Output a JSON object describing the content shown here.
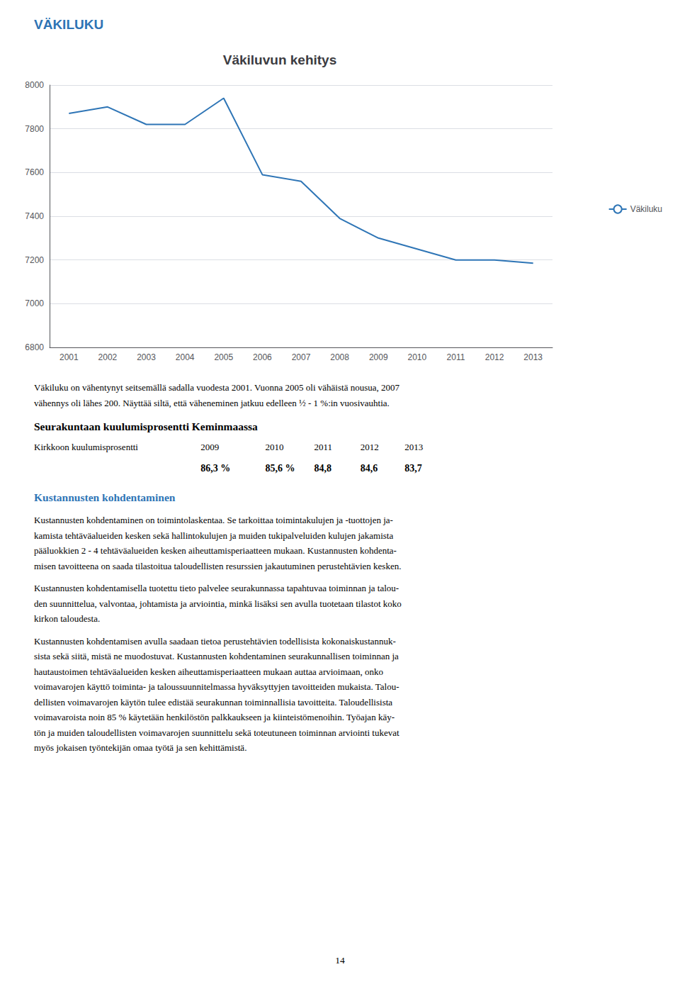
{
  "page_title": {
    "text": "VÄKILUKU",
    "color": "#2E74B5"
  },
  "chart_data": {
    "type": "line",
    "title": "Väkiluvun kehitys",
    "categories": [
      "2001",
      "2002",
      "2003",
      "2004",
      "2005",
      "2006",
      "2007",
      "2008",
      "2009",
      "2010",
      "2011",
      "2012",
      "2013"
    ],
    "series": [
      {
        "name": "Väkiluku",
        "color": "#2E75B6",
        "values": [
          7870,
          7900,
          7820,
          7820,
          7940,
          7590,
          7560,
          7390,
          7300,
          7250,
          7200,
          7200,
          7185
        ]
      }
    ],
    "ylim": [
      6800,
      8000
    ],
    "yticks": [
      6800,
      7000,
      7200,
      7400,
      7600,
      7800,
      8000
    ],
    "grid": true,
    "legend": "right"
  },
  "body": [
    {
      "paragraph": [
        "Väkiluku on vähentynyt seitsemällä sadalla vuodesta 2001. Vuonna 2005 oli vähäistä nousua, 2007",
        "vähennys oli lähes 200. Näyttää siltä, että väheneminen jatkuu edelleen ½ - 1 %:in vuosivauhtia."
      ]
    },
    {
      "heading": "Seurakuntaan kuulumisprosentti Keminmaassa"
    },
    {
      "table": {
        "label": "Kirkkoon kuulumisprosentti",
        "columns": [
          "2009",
          "2010",
          "2011",
          "2012",
          "2013"
        ],
        "values": [
          "86,3 %",
          "85,6 %",
          "84,8",
          "84,6",
          "83,7"
        ]
      }
    },
    {
      "heading": "Kustannusten kohdentaminen",
      "color": "#2E75B6"
    },
    {
      "paragraph": [
        "Kustannusten kohdentaminen on toimintolaskentaa. Se tarkoittaa toimintakulujen ja -tuottojen ja-",
        "kamista tehtäväalueiden kesken sekä hallintokulujen ja muiden tukipalveluiden kulujen jakamista",
        "pääluokkien 2 - 4 tehtäväalueiden kesken aiheuttamisperiaatteen mukaan. Kustannusten kohdenta-",
        "misen tavoitteena on saada tilastoitua taloudellisten resurssien jakautuminen perustehtävien kesken."
      ]
    },
    {
      "paragraph": [
        "Kustannusten kohdentamisella tuotettu tieto palvelee seurakunnassa tapahtuvaa toiminnan ja talou-",
        "den suunnittelua, valvontaa, johtamista ja arviointia, minkä lisäksi sen avulla tuotetaan tilastot koko",
        "kirkon taloudesta."
      ]
    },
    {
      "paragraph": [
        "Kustannusten kohdentamisen avulla saadaan tietoa perustehtävien todellisista kokonaiskustannuk-",
        "sista sekä siitä, mistä ne muodostuvat. Kustannusten kohdentaminen seurakunnallisen toiminnan ja",
        "hautaustoimen tehtäväalueiden kesken aiheuttamisperiaatteen mukaan auttaa arvioimaan, onko",
        "voimavarojen käyttö toiminta- ja taloussuunnitelmassa hyväksyttyjen tavoitteiden mukaista. Talou-",
        "dellisten voimavarojen käytön tulee edistää seurakunnan toiminnallisia tavoitteita. Taloudellisista",
        "voimavaroista noin 85 % käytetään henkilöstön palkkaukseen ja kiinteistömenoihin. Työajan käy-",
        "tön ja muiden taloudellisten voimavarojen suunnittelu sekä toteutuneen toiminnan arviointi tukevat",
        "myös jokaisen työntekijän omaa työtä ja sen kehittämistä."
      ]
    }
  ],
  "page_number": "14"
}
